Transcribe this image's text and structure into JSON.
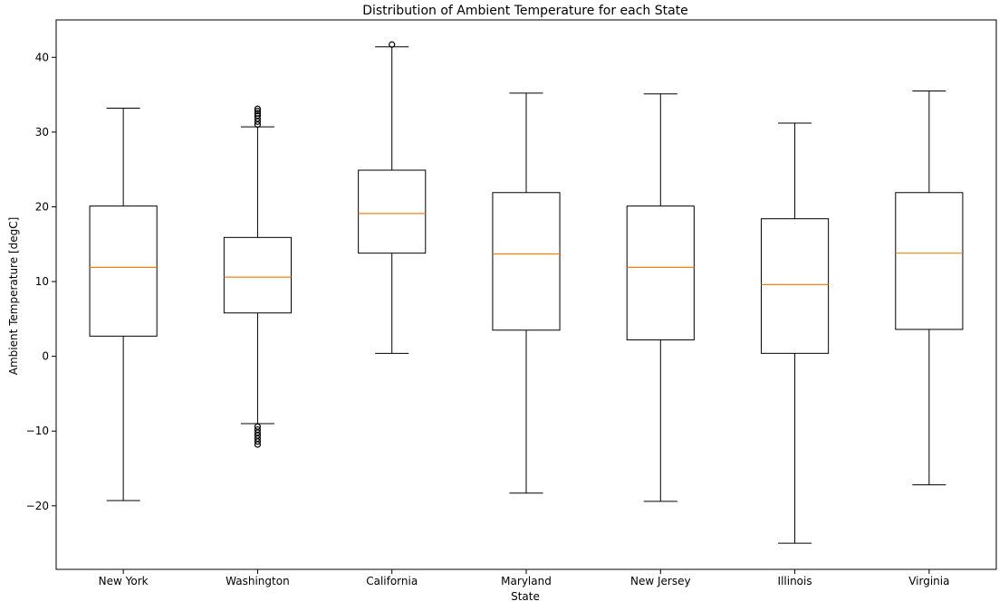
{
  "chart_data": {
    "type": "box",
    "title": "Distribution of Ambient Temperature for each State",
    "xlabel": "State",
    "ylabel": "Ambient Temperature [degC]",
    "ylim": [
      -28.5,
      45
    ],
    "yticks": [
      -20,
      -10,
      0,
      10,
      20,
      30,
      40
    ],
    "grid": false,
    "categories": [
      "New York",
      "Washington",
      "California",
      "Maryland",
      "New Jersey",
      "Illinois",
      "Virginia"
    ],
    "boxes": [
      {
        "category": "New York",
        "whisker_low": -19.3,
        "q1": 2.7,
        "median": 11.9,
        "q3": 20.1,
        "whisker_high": 33.2,
        "outliers": []
      },
      {
        "category": "Washington",
        "whisker_low": -9.0,
        "q1": 5.8,
        "median": 10.6,
        "q3": 15.9,
        "whisker_high": 30.7,
        "outliers": [
          31.0,
          31.4,
          31.8,
          32.2,
          32.5,
          32.8,
          33.1,
          -9.4,
          -9.8,
          -10.2,
          -10.6,
          -11.0,
          -11.4,
          -11.8
        ]
      },
      {
        "category": "California",
        "whisker_low": 0.4,
        "q1": 13.8,
        "median": 19.1,
        "q3": 24.9,
        "whisker_high": 41.4,
        "outliers": [
          41.7
        ]
      },
      {
        "category": "Maryland",
        "whisker_low": -18.3,
        "q1": 3.5,
        "median": 13.7,
        "q3": 21.9,
        "whisker_high": 35.2,
        "outliers": []
      },
      {
        "category": "New Jersey",
        "whisker_low": -19.4,
        "q1": 2.2,
        "median": 11.9,
        "q3": 20.1,
        "whisker_high": 35.1,
        "outliers": []
      },
      {
        "category": "Illinois",
        "whisker_low": -25.0,
        "q1": 0.4,
        "median": 9.6,
        "q3": 18.4,
        "whisker_high": 31.2,
        "outliers": []
      },
      {
        "category": "Virginia",
        "whisker_low": -17.2,
        "q1": 3.6,
        "median": 13.8,
        "q3": 21.9,
        "whisker_high": 35.5,
        "outliers": []
      }
    ],
    "colors": {
      "box_edge": "#000000",
      "median": "#ff7f0e",
      "outlier_edge": "#000000",
      "axes": "#000000"
    }
  }
}
